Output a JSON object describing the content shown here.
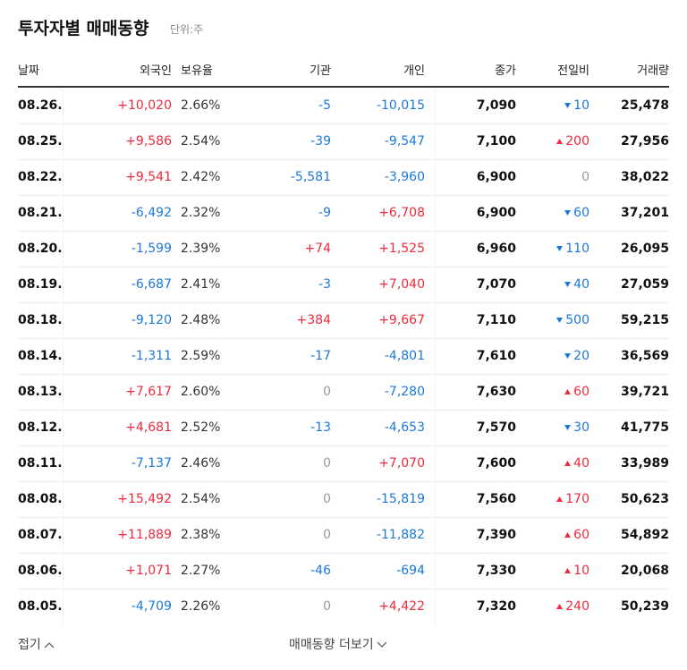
{
  "header": {
    "title": "투자자별 매매동향",
    "unit": "단위:주"
  },
  "table": {
    "columns": [
      "날짜",
      "외국인",
      "보유율",
      "기관",
      "개인",
      "종가",
      "전일비",
      "거래량"
    ],
    "rows": [
      [
        "08.26.",
        "+10,020",
        "2.66%",
        "-5",
        "-10,015",
        "7,090",
        {
          "text": "10",
          "dir": "down"
        },
        "25,478"
      ],
      [
        "08.25.",
        "+9,586",
        "2.54%",
        "-39",
        "-9,547",
        "7,100",
        {
          "text": "200",
          "dir": "up"
        },
        "27,956"
      ],
      [
        "08.22.",
        "+9,541",
        "2.42%",
        "-5,581",
        "-3,960",
        "6,900",
        {
          "text": "0",
          "dir": "flat"
        },
        "38,022"
      ],
      [
        "08.21.",
        "-6,492",
        "2.32%",
        "-9",
        "+6,708",
        "6,900",
        {
          "text": "60",
          "dir": "down"
        },
        "37,201"
      ],
      [
        "08.20.",
        "-1,599",
        "2.39%",
        "+74",
        "+1,525",
        "6,960",
        {
          "text": "110",
          "dir": "down"
        },
        "26,095"
      ],
      [
        "08.19.",
        "-6,687",
        "2.41%",
        "-3",
        "+7,040",
        "7,070",
        {
          "text": "40",
          "dir": "down"
        },
        "27,059"
      ],
      [
        "08.18.",
        "-9,120",
        "2.48%",
        "+384",
        "+9,667",
        "7,110",
        {
          "text": "500",
          "dir": "down"
        },
        "59,215"
      ],
      [
        "08.14.",
        "-1,311",
        "2.59%",
        "-17",
        "-4,801",
        "7,610",
        {
          "text": "20",
          "dir": "down"
        },
        "36,569"
      ],
      [
        "08.13.",
        "+7,617",
        "2.60%",
        "0",
        "-7,280",
        "7,630",
        {
          "text": "60",
          "dir": "up"
        },
        "39,721"
      ],
      [
        "08.12.",
        "+4,681",
        "2.52%",
        "-13",
        "-4,653",
        "7,570",
        {
          "text": "30",
          "dir": "down"
        },
        "41,775"
      ],
      [
        "08.11.",
        "-7,137",
        "2.46%",
        "0",
        "+7,070",
        "7,600",
        {
          "text": "40",
          "dir": "up"
        },
        "33,989"
      ],
      [
        "08.08.",
        "+15,492",
        "2.54%",
        "0",
        "-15,819",
        "7,560",
        {
          "text": "170",
          "dir": "up"
        },
        "50,623"
      ],
      [
        "08.07.",
        "+11,889",
        "2.38%",
        "0",
        "-11,882",
        "7,390",
        {
          "text": "60",
          "dir": "up"
        },
        "54,892"
      ],
      [
        "08.06.",
        "+1,071",
        "2.27%",
        "-46",
        "-694",
        "7,330",
        {
          "text": "10",
          "dir": "up"
        },
        "20,068"
      ],
      [
        "08.05.",
        "-4,709",
        "2.26%",
        "0",
        "+4,422",
        "7,320",
        {
          "text": "240",
          "dir": "up"
        },
        "50,239"
      ]
    ]
  },
  "footer": {
    "collapse": "접기",
    "more": "매매동향 더보기"
  }
}
